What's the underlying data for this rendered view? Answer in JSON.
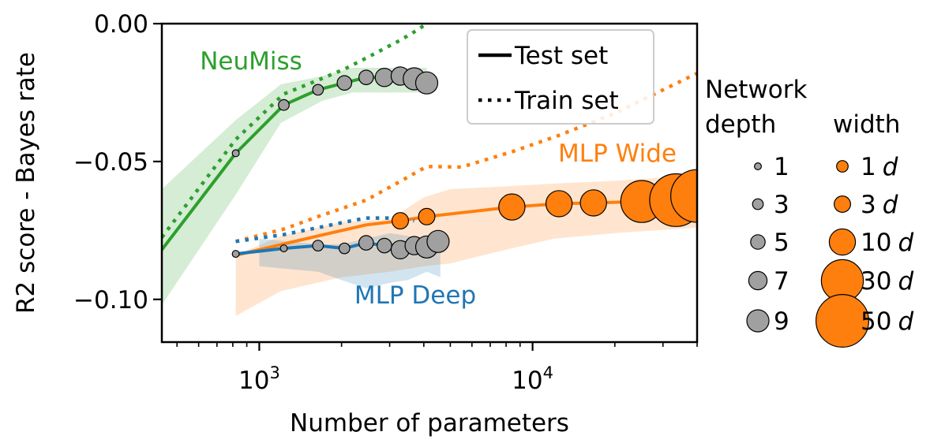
{
  "chart_data": {
    "type": "line",
    "xlabel": "Number of parameters",
    "ylabel": "R2 score - Bayes rate",
    "xscale": "log",
    "xlim": [
      440,
      40000
    ],
    "ylim": [
      -0.1155,
      0.0
    ],
    "x_ticks": [
      {
        "value": 1000,
        "base": "10",
        "exp": "3"
      },
      {
        "value": 10000,
        "base": "10",
        "exp": "4"
      }
    ],
    "y_ticks": [
      {
        "value": 0.0,
        "label": "0.00"
      },
      {
        "value": -0.05,
        "label": "−0.05"
      },
      {
        "value": -0.1,
        "label": "−0.10"
      }
    ],
    "legend": {
      "position": "top-center",
      "entries": [
        {
          "label": "Test set",
          "style": "solid"
        },
        {
          "label": "Train set",
          "style": "dotted"
        }
      ]
    },
    "series": [
      {
        "name": "NeuMiss",
        "color": "#2ca02c",
        "marker_kind": "depth",
        "band": {
          "x": [
            440,
            820,
            1200,
            1700,
            2200,
            2700,
            3200,
            3700,
            4100
          ],
          "lower": [
            -0.102,
            -0.062,
            -0.036,
            -0.028,
            -0.025,
            -0.025,
            -0.025,
            -0.025,
            -0.025
          ],
          "upper": [
            -0.06,
            -0.035,
            -0.022,
            -0.019,
            -0.016,
            -0.016,
            -0.016,
            -0.016,
            -0.016
          ]
        },
        "test": {
          "x": [
            440,
            820,
            1230,
            1640,
            2050,
            2460,
            2870,
            3280,
            3690,
            4100
          ],
          "y": [
            -0.082,
            -0.047,
            -0.0295,
            -0.024,
            -0.0215,
            -0.0195,
            -0.0195,
            -0.019,
            -0.02,
            -0.0215
          ],
          "marker_depths": [
            null,
            1,
            3,
            3,
            5,
            5,
            7,
            7,
            9,
            9
          ]
        },
        "train": {
          "x": [
            440,
            820,
            1230,
            1640,
            2050,
            2460,
            2870,
            3280,
            3690,
            4100
          ],
          "y": [
            -0.0775,
            -0.042,
            -0.0255,
            -0.0205,
            -0.0165,
            -0.0125,
            -0.009,
            -0.006,
            -0.003,
            0.0
          ]
        }
      },
      {
        "name": "MLP Wide",
        "color": "#ff7f0e",
        "marker_kind": "width",
        "band": {
          "x": [
            820,
            1200,
            2000,
            3000,
            4000,
            5000,
            8000,
            12000,
            20000,
            40000
          ],
          "lower": [
            -0.106,
            -0.097,
            -0.092,
            -0.09,
            -0.088,
            -0.087,
            -0.082,
            -0.078,
            -0.076,
            -0.074
          ],
          "upper": [
            -0.084,
            -0.077,
            -0.072,
            -0.071,
            -0.063,
            -0.06,
            -0.059,
            -0.058,
            -0.057,
            -0.055
          ]
        },
        "test": {
          "x": [
            820,
            1640,
            2460,
            3280,
            4100,
            8400,
            12500,
            16700,
            25100,
            33500,
            40000
          ],
          "y": [
            -0.084,
            -0.077,
            -0.073,
            -0.0715,
            -0.07,
            -0.0665,
            -0.0653,
            -0.065,
            -0.0645,
            -0.064,
            -0.0625
          ],
          "marker_widths": [
            null,
            null,
            null,
            3,
            3,
            10,
            10,
            10,
            30,
            50,
            50
          ]
        },
        "train": {
          "x": [
            820,
            1230,
            1640,
            2460,
            3280,
            4100,
            5500,
            8400,
            12500,
            20000,
            40000
          ],
          "y": [
            -0.079,
            -0.0745,
            -0.07,
            -0.064,
            -0.0572,
            -0.0518,
            -0.052,
            -0.0465,
            -0.0405,
            -0.0325,
            -0.018
          ]
        }
      },
      {
        "name": "MLP Deep",
        "color": "#1f77b4",
        "marker_kind": "depth",
        "band": {
          "x": [
            1000,
            1640,
            2000,
            2460,
            3000,
            3500,
            4100,
            4600
          ],
          "lower": [
            -0.088,
            -0.09,
            -0.093,
            -0.096,
            -0.094,
            -0.093,
            -0.09,
            -0.092
          ],
          "upper": [
            -0.078,
            -0.08,
            -0.08,
            -0.078,
            -0.076,
            -0.077,
            -0.079,
            -0.08
          ]
        },
        "test": {
          "x": [
            820,
            1230,
            1640,
            2050,
            2460,
            2870,
            3280,
            3690,
            4100,
            4510
          ],
          "y": [
            -0.0835,
            -0.0815,
            -0.0805,
            -0.0815,
            -0.0795,
            -0.0805,
            -0.082,
            -0.0805,
            -0.081,
            -0.079
          ],
          "marker_depths": [
            1,
            1,
            3,
            3,
            5,
            5,
            7,
            7,
            9,
            9
          ]
        },
        "train": {
          "x": [
            820,
            1230,
            1640,
            2050,
            2460,
            2870,
            3280,
            3690
          ],
          "y": [
            -0.079,
            -0.0765,
            -0.074,
            -0.072,
            -0.0705,
            -0.0705,
            -0.0705,
            -0.0715
          ]
        }
      }
    ],
    "size_legend": {
      "title_line1": "Network",
      "depth_title": "depth",
      "width_title": "width",
      "depth_color": "#a0a0a0",
      "width_color": "#ff7f0e",
      "depth_entries": [
        {
          "value": 1,
          "label": "1"
        },
        {
          "value": 3,
          "label": "3"
        },
        {
          "value": 5,
          "label": "5"
        },
        {
          "value": 7,
          "label": "7"
        },
        {
          "value": 9,
          "label": "9"
        }
      ],
      "width_entries": [
        {
          "value": 1,
          "num": "1",
          "unit": "d"
        },
        {
          "value": 3,
          "num": "3",
          "unit": "d"
        },
        {
          "value": 10,
          "num": "10",
          "unit": "d"
        },
        {
          "value": 30,
          "num": "30",
          "unit": "d"
        },
        {
          "value": 50,
          "num": "50",
          "unit": "d"
        }
      ]
    }
  }
}
